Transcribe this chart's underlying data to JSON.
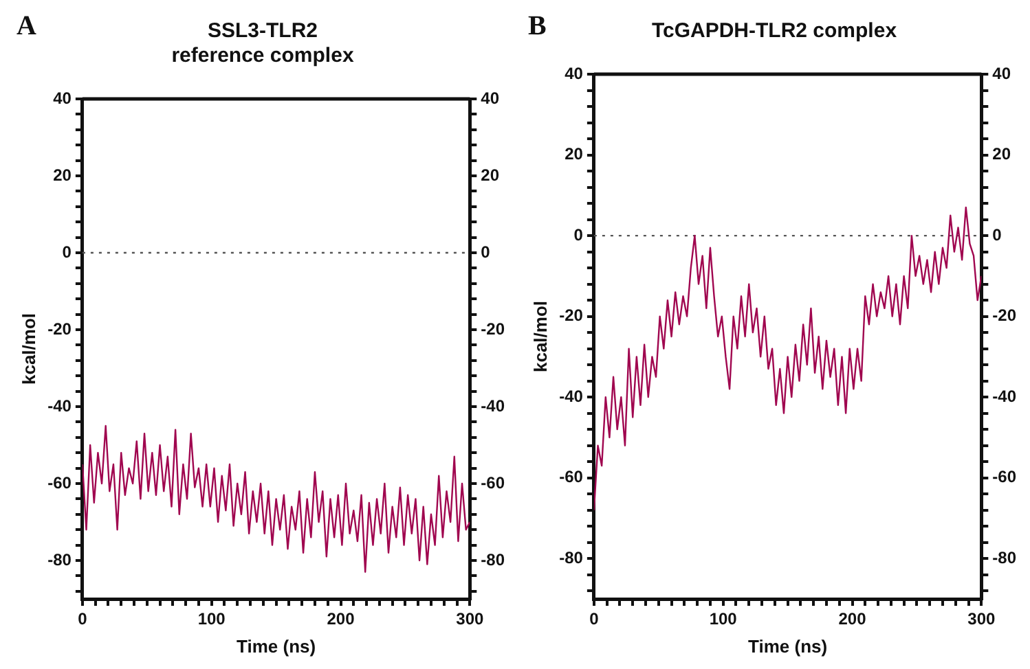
{
  "chart_data": [
    {
      "type": "line",
      "title": "SSL3-TLR2\nreference complex",
      "annotations": [
        "A"
      ],
      "xlabel": "Time (ns)",
      "ylabel": "kcal/mol",
      "xlim": [
        0,
        300
      ],
      "ylim": [
        -90,
        40
      ],
      "y2lim": [
        -90,
        40
      ],
      "xticks": [
        0,
        {
          "value": 10,
          "label": null
        },
        {
          "value": 20,
          "label": null
        },
        {
          "value": 30,
          "label": null
        },
        {
          "value": 40,
          "label": null
        },
        {
          "value": 50,
          "label": null
        },
        {
          "value": 60,
          "label": null
        },
        {
          "value": 70,
          "label": null
        },
        {
          "value": 80,
          "label": null
        },
        {
          "value": 90,
          "label": null
        },
        100,
        {
          "value": 110,
          "label": null
        },
        {
          "value": 120,
          "label": null
        },
        {
          "value": 130,
          "label": null
        },
        {
          "value": 140,
          "label": null
        },
        {
          "value": 150,
          "label": null
        },
        {
          "value": 160,
          "label": null
        },
        {
          "value": 170,
          "label": null
        },
        {
          "value": 180,
          "label": null
        },
        {
          "value": 190,
          "label": null
        },
        200,
        {
          "value": 210,
          "label": null
        },
        {
          "value": 220,
          "label": null
        },
        {
          "value": 230,
          "label": null
        },
        {
          "value": 240,
          "label": null
        },
        {
          "value": 250,
          "label": null
        },
        {
          "value": 260,
          "label": null
        },
        {
          "value": 270,
          "label": null
        },
        {
          "value": 280,
          "label": null
        },
        {
          "value": 290,
          "label": null
        },
        300
      ],
      "yticks": [
        {
          "value": -88,
          "label": null
        },
        {
          "value": -84,
          "label": null
        },
        -80,
        {
          "value": -76,
          "label": null
        },
        {
          "value": -72,
          "label": null
        },
        {
          "value": -68,
          "label": null
        },
        {
          "value": -64,
          "label": null
        },
        -60,
        {
          "value": -56,
          "label": null
        },
        {
          "value": -52,
          "label": null
        },
        {
          "value": -48,
          "label": null
        },
        {
          "value": -44,
          "label": null
        },
        -40,
        {
          "value": -36,
          "label": null
        },
        {
          "value": -32,
          "label": null
        },
        {
          "value": -28,
          "label": null
        },
        {
          "value": -24,
          "label": null
        },
        -20,
        {
          "value": -16,
          "label": null
        },
        {
          "value": -12,
          "label": null
        },
        {
          "value": -8,
          "label": null
        },
        {
          "value": -4,
          "label": null
        },
        0,
        {
          "value": 4,
          "label": null
        },
        {
          "value": 8,
          "label": null
        },
        {
          "value": 12,
          "label": null
        },
        {
          "value": 16,
          "label": null
        },
        20,
        {
          "value": 24,
          "label": null
        },
        {
          "value": 28,
          "label": null
        },
        {
          "value": 32,
          "label": null
        },
        {
          "value": 36,
          "label": null
        },
        40
      ],
      "y2ticks": [
        {
          "value": -88,
          "label": null
        },
        {
          "value": -84,
          "label": null
        },
        -80,
        {
          "value": -76,
          "label": null
        },
        {
          "value": -72,
          "label": null
        },
        {
          "value": -68,
          "label": null
        },
        {
          "value": -64,
          "label": null
        },
        -60,
        {
          "value": -56,
          "label": null
        },
        {
          "value": -52,
          "label": null
        },
        {
          "value": -48,
          "label": null
        },
        {
          "value": -44,
          "label": null
        },
        -40,
        {
          "value": -36,
          "label": null
        },
        {
          "value": -32,
          "label": null
        },
        {
          "value": -28,
          "label": null
        },
        {
          "value": -24,
          "label": null
        },
        -20,
        {
          "value": -16,
          "label": null
        },
        {
          "value": -12,
          "label": null
        },
        {
          "value": -8,
          "label": null
        },
        {
          "value": -4,
          "label": null
        },
        0,
        {
          "value": 4,
          "label": null
        },
        {
          "value": 8,
          "label": null
        },
        {
          "value": 12,
          "label": null
        },
        {
          "value": 16,
          "label": null
        },
        20,
        {
          "value": 24,
          "label": null
        },
        {
          "value": 28,
          "label": null
        },
        {
          "value": 32,
          "label": null
        },
        {
          "value": 36,
          "label": null
        },
        40
      ],
      "ref_lines": [
        {
          "axis": "y",
          "value": 0,
          "color": "#555555",
          "line_style": "dotted"
        }
      ],
      "x": [
        0,
        3,
        6,
        9,
        12,
        15,
        18,
        21,
        24,
        27,
        30,
        33,
        36,
        39,
        42,
        45,
        48,
        51,
        54,
        57,
        60,
        63,
        66,
        69,
        72,
        75,
        78,
        81,
        84,
        87,
        90,
        93,
        96,
        99,
        102,
        105,
        108,
        111,
        114,
        117,
        120,
        123,
        126,
        129,
        132,
        135,
        138,
        141,
        144,
        147,
        150,
        153,
        156,
        159,
        162,
        165,
        168,
        171,
        174,
        177,
        180,
        183,
        186,
        189,
        192,
        195,
        198,
        201,
        204,
        207,
        210,
        213,
        216,
        219,
        222,
        225,
        228,
        231,
        234,
        237,
        240,
        243,
        246,
        249,
        252,
        255,
        258,
        261,
        264,
        267,
        270,
        273,
        276,
        279,
        282,
        285,
        288,
        291,
        294,
        297,
        300
      ],
      "series": [
        {
          "color": "#a0064f",
          "values": [
            -55,
            -72,
            -50,
            -65,
            -52,
            -60,
            -45,
            -62,
            -55,
            -72,
            -52,
            -63,
            -56,
            -60,
            -49,
            -64,
            -47,
            -62,
            -52,
            -63,
            -50,
            -62,
            -53,
            -66,
            -46,
            -68,
            -55,
            -64,
            -47,
            -61,
            -56,
            -66,
            -55,
            -66,
            -56,
            -70,
            -58,
            -67,
            -55,
            -71,
            -60,
            -68,
            -57,
            -73,
            -62,
            -70,
            -60,
            -73,
            -62,
            -76,
            -64,
            -72,
            -63,
            -77,
            -66,
            -72,
            -62,
            -78,
            -64,
            -74,
            -57,
            -70,
            -62,
            -79,
            -64,
            -74,
            -63,
            -76,
            -60,
            -73,
            -67,
            -75,
            -63,
            -83,
            -65,
            -76,
            -64,
            -73,
            -60,
            -78,
            -66,
            -74,
            -61,
            -76,
            -63,
            -73,
            -64,
            -80,
            -66,
            -81,
            -68,
            -76,
            -58,
            -74,
            -62,
            -70,
            -53,
            -75,
            -60,
            -72,
            -70
          ]
        }
      ]
    },
    {
      "type": "line",
      "title": "TcGAPDH-TLR2 complex",
      "annotations": [
        "B"
      ],
      "xlabel": "Time (ns)",
      "ylabel": "kcal/mol",
      "xlim": [
        0,
        300
      ],
      "ylim": [
        -90,
        40
      ],
      "y2lim": [
        -90,
        40
      ],
      "xticks": [
        0,
        {
          "value": 10,
          "label": null
        },
        {
          "value": 20,
          "label": null
        },
        {
          "value": 30,
          "label": null
        },
        {
          "value": 40,
          "label": null
        },
        {
          "value": 50,
          "label": null
        },
        {
          "value": 60,
          "label": null
        },
        {
          "value": 70,
          "label": null
        },
        {
          "value": 80,
          "label": null
        },
        {
          "value": 90,
          "label": null
        },
        100,
        {
          "value": 110,
          "label": null
        },
        {
          "value": 120,
          "label": null
        },
        {
          "value": 130,
          "label": null
        },
        {
          "value": 140,
          "label": null
        },
        {
          "value": 150,
          "label": null
        },
        {
          "value": 160,
          "label": null
        },
        {
          "value": 170,
          "label": null
        },
        {
          "value": 180,
          "label": null
        },
        {
          "value": 190,
          "label": null
        },
        200,
        {
          "value": 210,
          "label": null
        },
        {
          "value": 220,
          "label": null
        },
        {
          "value": 230,
          "label": null
        },
        {
          "value": 240,
          "label": null
        },
        {
          "value": 250,
          "label": null
        },
        {
          "value": 260,
          "label": null
        },
        {
          "value": 270,
          "label": null
        },
        {
          "value": 280,
          "label": null
        },
        {
          "value": 290,
          "label": null
        },
        300
      ],
      "yticks": [
        {
          "value": -88,
          "label": null
        },
        {
          "value": -84,
          "label": null
        },
        -80,
        {
          "value": -76,
          "label": null
        },
        {
          "value": -72,
          "label": null
        },
        {
          "value": -68,
          "label": null
        },
        {
          "value": -64,
          "label": null
        },
        -60,
        {
          "value": -56,
          "label": null
        },
        {
          "value": -52,
          "label": null
        },
        {
          "value": -48,
          "label": null
        },
        {
          "value": -44,
          "label": null
        },
        -40,
        {
          "value": -36,
          "label": null
        },
        {
          "value": -32,
          "label": null
        },
        {
          "value": -28,
          "label": null
        },
        {
          "value": -24,
          "label": null
        },
        -20,
        {
          "value": -16,
          "label": null
        },
        {
          "value": -12,
          "label": null
        },
        {
          "value": -8,
          "label": null
        },
        {
          "value": -4,
          "label": null
        },
        0,
        {
          "value": 4,
          "label": null
        },
        {
          "value": 8,
          "label": null
        },
        {
          "value": 12,
          "label": null
        },
        {
          "value": 16,
          "label": null
        },
        20,
        {
          "value": 24,
          "label": null
        },
        {
          "value": 28,
          "label": null
        },
        {
          "value": 32,
          "label": null
        },
        {
          "value": 36,
          "label": null
        },
        40
      ],
      "y2ticks": [
        {
          "value": -88,
          "label": null
        },
        {
          "value": -84,
          "label": null
        },
        -80,
        {
          "value": -76,
          "label": null
        },
        {
          "value": -72,
          "label": null
        },
        {
          "value": -68,
          "label": null
        },
        {
          "value": -64,
          "label": null
        },
        -60,
        {
          "value": -56,
          "label": null
        },
        {
          "value": -52,
          "label": null
        },
        {
          "value": -48,
          "label": null
        },
        {
          "value": -44,
          "label": null
        },
        -40,
        {
          "value": -36,
          "label": null
        },
        {
          "value": -32,
          "label": null
        },
        {
          "value": -28,
          "label": null
        },
        {
          "value": -24,
          "label": null
        },
        -20,
        {
          "value": -16,
          "label": null
        },
        {
          "value": -12,
          "label": null
        },
        {
          "value": -8,
          "label": null
        },
        {
          "value": -4,
          "label": null
        },
        0,
        {
          "value": 4,
          "label": null
        },
        {
          "value": 8,
          "label": null
        },
        {
          "value": 12,
          "label": null
        },
        {
          "value": 16,
          "label": null
        },
        20,
        {
          "value": 24,
          "label": null
        },
        {
          "value": 28,
          "label": null
        },
        {
          "value": 32,
          "label": null
        },
        {
          "value": 36,
          "label": null
        },
        40
      ],
      "ref_lines": [
        {
          "axis": "y",
          "value": 0,
          "color": "#555555",
          "line_style": "dotted"
        }
      ],
      "x": [
        0,
        3,
        6,
        9,
        12,
        15,
        18,
        21,
        24,
        27,
        30,
        33,
        36,
        39,
        42,
        45,
        48,
        51,
        54,
        57,
        60,
        63,
        66,
        69,
        72,
        75,
        78,
        81,
        84,
        87,
        90,
        93,
        96,
        99,
        102,
        105,
        108,
        111,
        114,
        117,
        120,
        123,
        126,
        129,
        132,
        135,
        138,
        141,
        144,
        147,
        150,
        153,
        156,
        159,
        162,
        165,
        168,
        171,
        174,
        177,
        180,
        183,
        186,
        189,
        192,
        195,
        198,
        201,
        204,
        207,
        210,
        213,
        216,
        219,
        222,
        225,
        228,
        231,
        234,
        237,
        240,
        243,
        246,
        249,
        252,
        255,
        258,
        261,
        264,
        267,
        270,
        273,
        276,
        279,
        282,
        285,
        288,
        291,
        294,
        297,
        300
      ],
      "series": [
        {
          "color": "#a0064f",
          "values": [
            -68,
            -52,
            -57,
            -40,
            -50,
            -35,
            -48,
            -40,
            -52,
            -28,
            -45,
            -30,
            -42,
            -27,
            -40,
            -30,
            -35,
            -20,
            -28,
            -16,
            -25,
            -14,
            -22,
            -15,
            -20,
            -8,
            0,
            -12,
            -5,
            -18,
            -3,
            -15,
            -25,
            -20,
            -30,
            -38,
            -20,
            -28,
            -15,
            -25,
            -12,
            -24,
            -18,
            -30,
            -20,
            -33,
            -28,
            -42,
            -33,
            -44,
            -30,
            -40,
            -27,
            -36,
            -22,
            -32,
            -18,
            -34,
            -25,
            -38,
            -26,
            -35,
            -28,
            -42,
            -30,
            -44,
            -28,
            -38,
            -28,
            -36,
            -15,
            -22,
            -12,
            -20,
            -14,
            -18,
            -10,
            -20,
            -12,
            -22,
            -10,
            -18,
            0,
            -10,
            -5,
            -12,
            -6,
            -14,
            -4,
            -12,
            -3,
            -8,
            5,
            -4,
            2,
            -6,
            7,
            -2,
            -5,
            -16,
            -10
          ]
        }
      ]
    }
  ]
}
